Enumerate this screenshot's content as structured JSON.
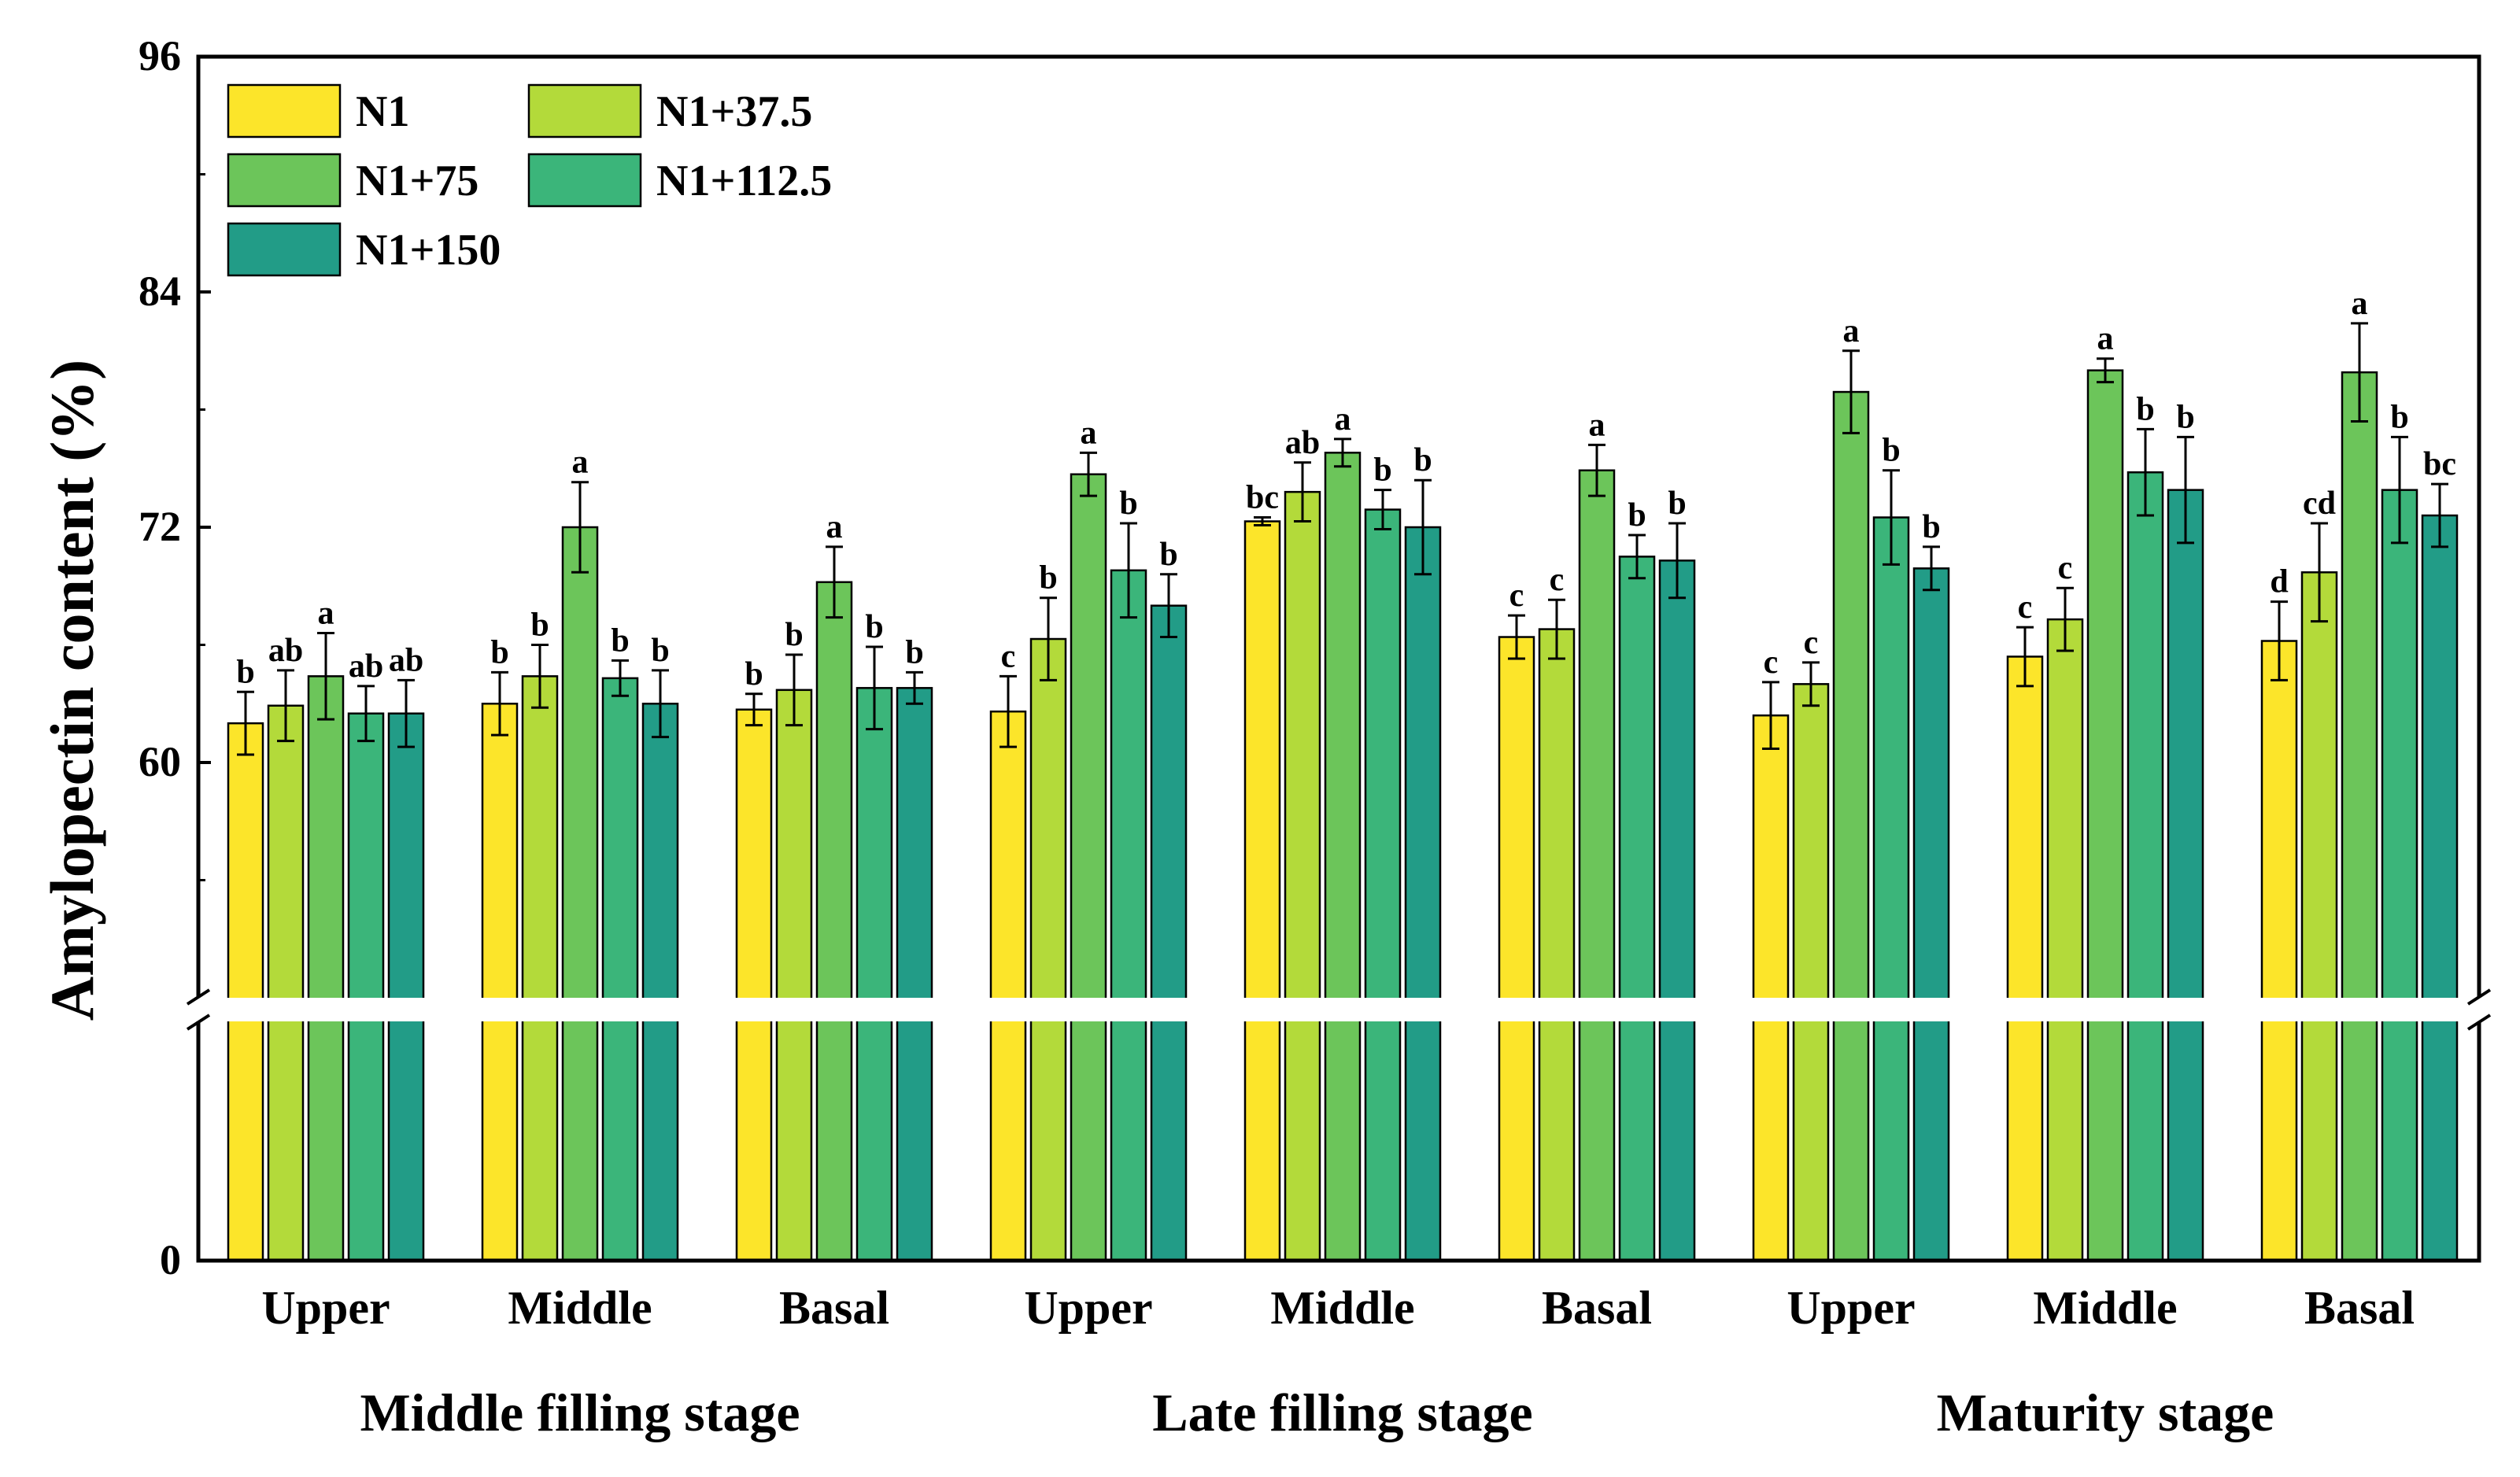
{
  "chart_data": {
    "type": "bar",
    "ylabel": "Amylopectin content (%)",
    "y_ticks": [
      0,
      60,
      72,
      84,
      96
    ],
    "ylim_lower": [
      0,
      12
    ],
    "ylim_upper": [
      48,
      96
    ],
    "axis_break": true,
    "legend_position": "top-left",
    "series": [
      {
        "name": "N1",
        "color": "#FCE52A",
        "values": [
          62.0,
          63.0,
          62.7,
          62.6,
          72.3,
          66.4,
          62.4,
          65.4,
          66.2
        ],
        "errors": [
          1.6,
          1.6,
          0.8,
          1.8,
          0.2,
          1.1,
          1.7,
          1.5,
          2.0
        ],
        "letters": [
          "b",
          "b",
          "b",
          "c",
          "bc",
          "c",
          "c",
          "c",
          "d"
        ]
      },
      {
        "name": "N1+37.5",
        "color": "#B3DA3A",
        "values": [
          62.9,
          64.4,
          63.7,
          66.3,
          73.8,
          66.8,
          64.0,
          67.3,
          69.7
        ],
        "errors": [
          1.8,
          1.6,
          1.8,
          2.1,
          1.5,
          1.5,
          1.1,
          1.6,
          2.5
        ],
        "letters": [
          "ab",
          "b",
          "b",
          "b",
          "ab",
          "c",
          "c",
          "c",
          "cd"
        ]
      },
      {
        "name": "N1+75",
        "color": "#6CC55A",
        "values": [
          64.4,
          72.0,
          69.2,
          74.7,
          75.8,
          74.9,
          78.9,
          80.0,
          79.9
        ],
        "errors": [
          2.2,
          2.3,
          1.8,
          1.1,
          0.7,
          1.3,
          2.1,
          0.6,
          2.5
        ],
        "letters": [
          "a",
          "a",
          "a",
          "a",
          "a",
          "a",
          "a",
          "a",
          "a"
        ]
      },
      {
        "name": "N1+112.5",
        "color": "#3BB57A",
        "values": [
          62.5,
          64.3,
          63.8,
          69.8,
          72.9,
          70.5,
          72.5,
          74.8,
          73.9
        ],
        "errors": [
          1.4,
          0.9,
          2.1,
          2.4,
          1.0,
          1.1,
          2.4,
          2.2,
          2.7
        ],
        "letters": [
          "ab",
          "b",
          "b",
          "b",
          "b",
          "b",
          "b",
          "b",
          "b"
        ]
      },
      {
        "name": "N1+150",
        "color": "#229C87",
        "values": [
          62.5,
          63.0,
          63.8,
          68.0,
          72.0,
          70.3,
          69.9,
          73.9,
          72.6
        ],
        "errors": [
          1.7,
          1.7,
          0.8,
          1.6,
          2.4,
          1.9,
          1.1,
          2.7,
          1.6
        ],
        "letters": [
          "ab",
          "b",
          "b",
          "b",
          "b",
          "b",
          "b",
          "b",
          "bc"
        ]
      }
    ],
    "groups": [
      {
        "label": "Middle filling stage",
        "categories": [
          "Upper",
          "Middle",
          "Basal"
        ]
      },
      {
        "label": "Late filling stage",
        "categories": [
          "Upper",
          "Middle",
          "Basal"
        ]
      },
      {
        "label": "Maturity stage",
        "categories": [
          "Upper",
          "Middle",
          "Basal"
        ]
      }
    ]
  }
}
